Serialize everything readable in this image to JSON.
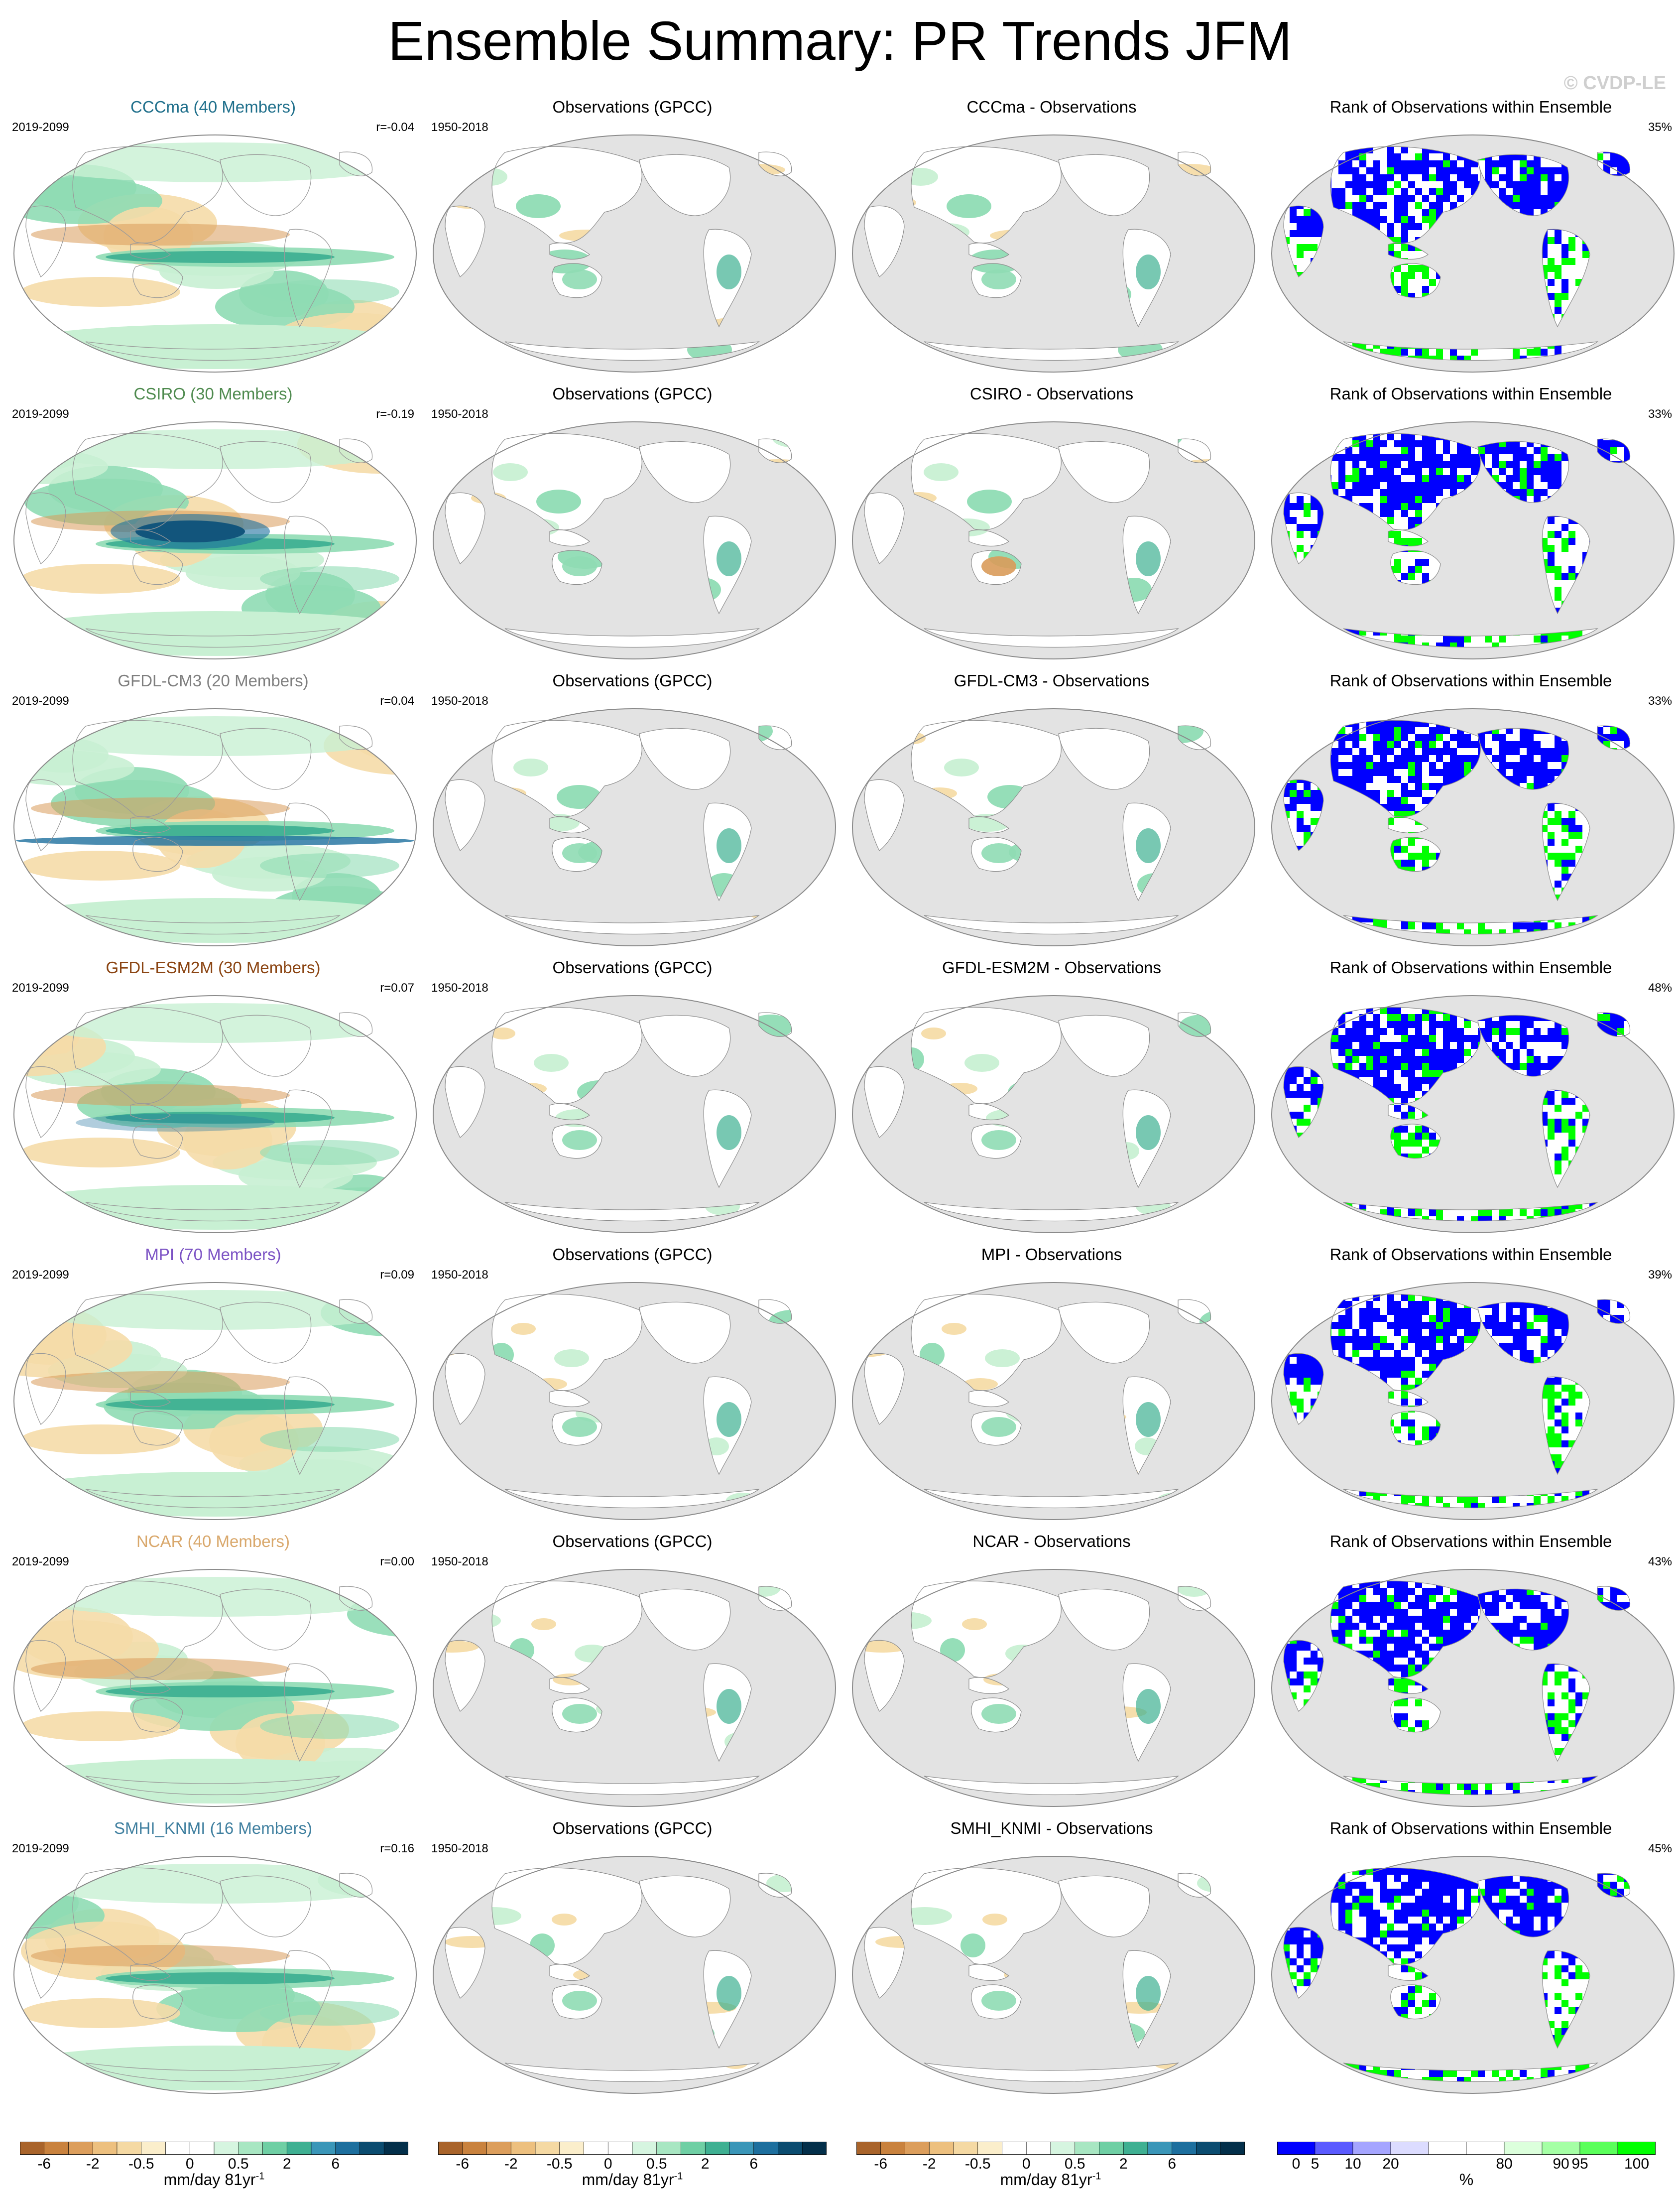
{
  "figure": {
    "title": "Ensemble Summary: PR Trends JFM",
    "watermark": "© CVDP-LE"
  },
  "rows": [
    {
      "model": "CCCma (40 Members)",
      "model_color": "#1f6f8b",
      "model_period": "2019-2099",
      "r": "r=-0.04",
      "obs_title": "Observations (GPCC)",
      "obs_period": "1950-2018",
      "diff_title": "CCCma - Observations",
      "rank_title": "Rank of Observations within Ensemble",
      "rank_pct": "35%"
    },
    {
      "model": "CSIRO (30 Members)",
      "model_color": "#4e8a4e",
      "model_period": "2019-2099",
      "r": "r=-0.19",
      "obs_title": "Observations (GPCC)",
      "obs_period": "1950-2018",
      "diff_title": "CSIRO - Observations",
      "rank_title": "Rank of Observations within Ensemble",
      "rank_pct": "33%"
    },
    {
      "model": "GFDL-CM3 (20 Members)",
      "model_color": "#7f7f7f",
      "model_period": "2019-2099",
      "r": "r=0.04",
      "obs_title": "Observations (GPCC)",
      "obs_period": "1950-2018",
      "diff_title": "GFDL-CM3 - Observations",
      "rank_title": "Rank of Observations within Ensemble",
      "rank_pct": "33%"
    },
    {
      "model": "GFDL-ESM2M (30 Members)",
      "model_color": "#8b4513",
      "model_period": "2019-2099",
      "r": "r=0.07",
      "obs_title": "Observations (GPCC)",
      "obs_period": "1950-2018",
      "diff_title": "GFDL-ESM2M - Observations",
      "rank_title": "Rank of Observations within Ensemble",
      "rank_pct": "48%"
    },
    {
      "model": "MPI (70 Members)",
      "model_color": "#7b52c4",
      "model_period": "2019-2099",
      "r": "r=0.09",
      "obs_title": "Observations (GPCC)",
      "obs_period": "1950-2018",
      "diff_title": "MPI - Observations",
      "rank_title": "Rank of Observations within Ensemble",
      "rank_pct": "39%"
    },
    {
      "model": "NCAR (40 Members)",
      "model_color": "#d9a86c",
      "model_period": "2019-2099",
      "r": "r=0.00",
      "obs_title": "Observations (GPCC)",
      "obs_period": "1950-2018",
      "diff_title": "NCAR - Observations",
      "rank_title": "Rank of Observations within Ensemble",
      "rank_pct": "43%"
    },
    {
      "model": "SMHI_KNMI (16 Members)",
      "model_color": "#3f7f9f",
      "model_period": "2019-2099",
      "r": "r=0.16",
      "obs_title": "Observations (GPCC)",
      "obs_period": "1950-2018",
      "diff_title": "SMHI_KNMI - Observations",
      "rank_title": "Rank of Observations within Ensemble",
      "rank_pct": "45%"
    }
  ],
  "colorbars": {
    "trend": {
      "colors": [
        "#a9642b",
        "#c9823e",
        "#dc9e5c",
        "#edc07f",
        "#f5d9a3",
        "#fbeecb",
        "#ffffff",
        "#ffffff",
        "#d6f5e0",
        "#a8e6c2",
        "#6fcfa4",
        "#3fb092",
        "#3a96b8",
        "#1d6f9e",
        "#0b4c70",
        "#032f4a"
      ],
      "tick_labels": [
        "-6",
        "-2",
        "-0.5",
        "0",
        "0.5",
        "2",
        "6"
      ],
      "tick_boundaries": [
        1,
        3,
        5,
        7,
        9,
        11,
        13
      ],
      "units": "mm/day 81yr",
      "units_sup": "-1"
    },
    "rank": {
      "colors": [
        "#0000ff",
        "#5a5aff",
        "#a5a5ff",
        "#dcdcff",
        "#ffffff",
        "#ffffff",
        "#dcffdc",
        "#a5ffa5",
        "#5aff5a",
        "#00ff00"
      ],
      "tick_labels": [
        "0",
        "5",
        "10",
        "20",
        "80",
        "90",
        "95",
        "100"
      ],
      "tick_boundaries": [
        0.5,
        1,
        2,
        3,
        6,
        7.5,
        8,
        9.5
      ],
      "units": "%"
    }
  },
  "map_colors": {
    "ocean_gray": "#e3e3e3",
    "green_light": "#c8f0d3",
    "green_mid": "#8fdcb4",
    "teal": "#3fb092",
    "blue": "#1d6f9e",
    "brown_light": "#f5dca8",
    "brown": "#d99b5a",
    "rank_blue": "#0000ff",
    "rank_green": "#00ff00"
  }
}
